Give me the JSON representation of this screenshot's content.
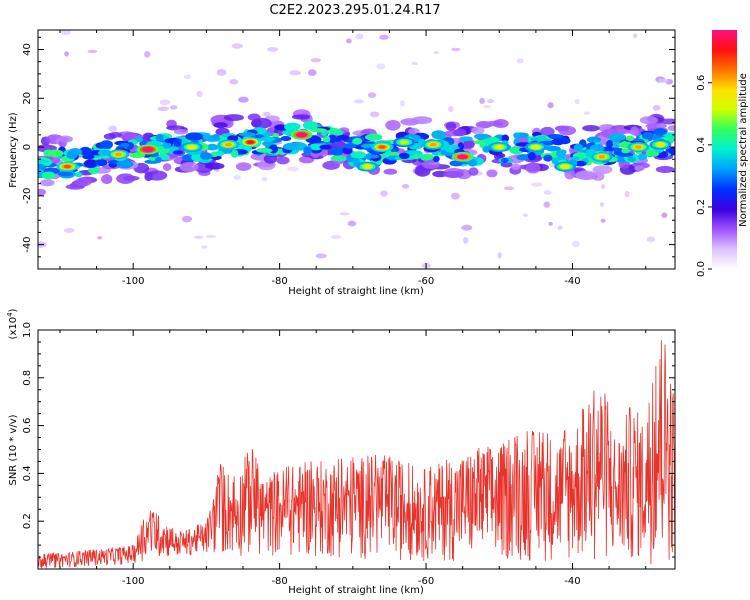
{
  "title": "C2E2.2023.295.01.24.R17",
  "colors": {
    "signal": "#e8322a",
    "frame": "#000000",
    "background": "#ffffff"
  },
  "chart_data": [
    {
      "type": "heatmap",
      "xlabel": "Height of straight line (km)",
      "ylabel": "Frequency (Hz)",
      "xlim": [
        -113,
        -26
      ],
      "ylim": [
        -50,
        48
      ],
      "x_ticks": [
        -100,
        -80,
        -60,
        -40
      ],
      "y_ticks": [
        -40,
        -20,
        0,
        20,
        40
      ],
      "colorbar": {
        "label": "Normalized spectral amplitude",
        "range": [
          0.0,
          0.77
        ],
        "ticks": [
          0.0,
          0.2,
          0.4,
          0.6
        ],
        "colormap": [
          "#ffffff",
          "#dcc2ff",
          "#a050ff",
          "#3a00e0",
          "#0030ff",
          "#00a0ff",
          "#00f0d0",
          "#30ff60",
          "#d0ff00",
          "#ffe000",
          "#ff7000",
          "#ff1010",
          "#ff1080"
        ]
      },
      "ridge": {
        "x": [
          -113,
          -105,
          -100,
          -95,
          -90,
          -85,
          -80,
          -76,
          -73,
          -70,
          -65,
          -60,
          -55,
          -50,
          -45,
          -40,
          -35,
          -30,
          -26
        ],
        "y": [
          -8,
          -5,
          -2,
          -1,
          0,
          2,
          3,
          4,
          2,
          -2,
          -1,
          1,
          -2,
          0,
          0,
          -2,
          -1,
          1,
          2
        ]
      },
      "peaks": [
        {
          "x": -109,
          "y": -8,
          "amp": 0.55
        },
        {
          "x": -102,
          "y": -3,
          "amp": 0.5
        },
        {
          "x": -98,
          "y": -1,
          "amp": 0.77
        },
        {
          "x": -92,
          "y": 0,
          "amp": 0.45
        },
        {
          "x": -87,
          "y": 1,
          "amp": 0.5
        },
        {
          "x": -84,
          "y": 2,
          "amp": 0.6
        },
        {
          "x": -77,
          "y": 5,
          "amp": 0.75
        },
        {
          "x": -68,
          "y": -8,
          "amp": 0.45
        },
        {
          "x": -66,
          "y": 0,
          "amp": 0.55
        },
        {
          "x": -63,
          "y": 2,
          "amp": 0.4
        },
        {
          "x": -59,
          "y": 1,
          "amp": 0.5
        },
        {
          "x": -55,
          "y": -4,
          "amp": 0.72
        },
        {
          "x": -50,
          "y": 0,
          "amp": 0.45
        },
        {
          "x": -45,
          "y": 0,
          "amp": 0.45
        },
        {
          "x": -41,
          "y": -8,
          "amp": 0.45
        },
        {
          "x": -36,
          "y": -4,
          "amp": 0.5
        },
        {
          "x": -31,
          "y": 0,
          "amp": 0.5
        },
        {
          "x": -28,
          "y": 1,
          "amp": 0.45
        }
      ]
    },
    {
      "type": "line",
      "xlabel": "Height of straight line (km)",
      "ylabel": "SNR (10 * v/v)",
      "y_multiplier": "(x10",
      "y_multiplier_exponent": "4",
      "y_multiplier_close": ")",
      "xlim": [
        -113,
        -26
      ],
      "ylim": [
        0,
        1.0
      ],
      "x_ticks": [
        -100,
        -80,
        -60,
        -40
      ],
      "y_ticks": [
        0.2,
        0.4,
        0.6,
        0.8,
        1.0
      ],
      "series": [
        {
          "color": "#e8322a",
          "envelope": {
            "x": [
              -113,
              -106,
              -100,
              -98,
              -96,
              -94,
              -90,
              -88,
              -86,
              -84,
              -82,
              -80,
              -76,
              -72,
              -66,
              -60,
              -54,
              -50,
              -46,
              -42,
              -40,
              -36,
              -34,
              -32,
              -30,
              -28,
              -27,
              -26
            ],
            "y": [
              0.06,
              0.08,
              0.1,
              0.25,
              0.22,
              0.15,
              0.2,
              0.45,
              0.38,
              0.52,
              0.38,
              0.42,
              0.45,
              0.46,
              0.48,
              0.42,
              0.5,
              0.52,
              0.58,
              0.56,
              0.6,
              0.8,
              0.55,
              0.7,
              0.62,
              0.95,
              1.0,
              0.7
            ]
          },
          "floor": {
            "x": [
              -113,
              -100,
              -98,
              -90,
              -88,
              -80,
              -70,
              -60,
              -50,
              -40,
              -26
            ],
            "y": [
              0.0,
              0.02,
              0.04,
              0.06,
              0.05,
              0.05,
              0.04,
              0.03,
              0.03,
              0.02,
              0.02
            ]
          }
        }
      ]
    }
  ]
}
